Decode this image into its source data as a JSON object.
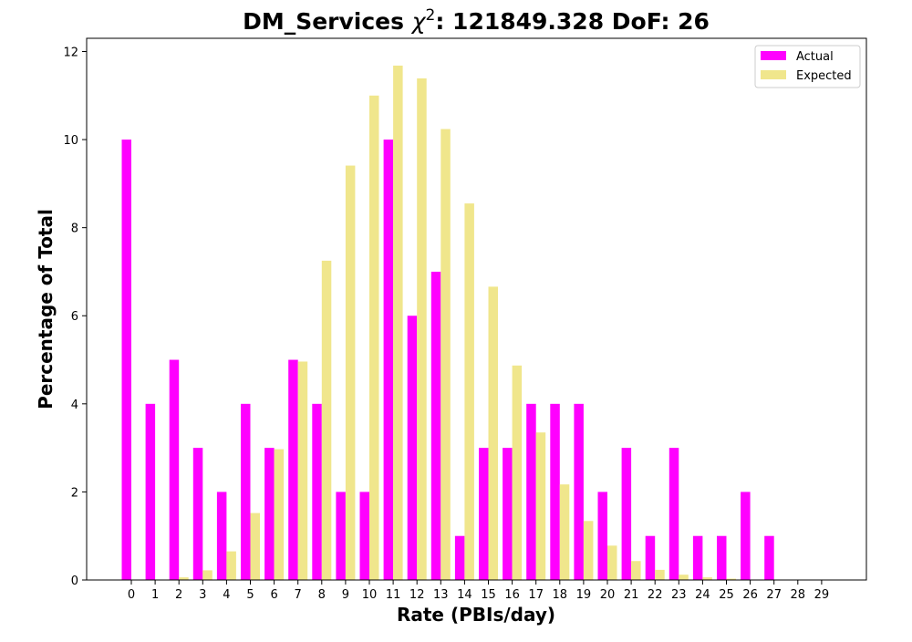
{
  "chart_data": {
    "type": "bar",
    "title": "DM_Services χ²: 121849.328 DoF: 26",
    "title_parts": {
      "prefix": "DM_Services ",
      "chi": "χ",
      "sup": "2",
      "suffix": ": 121849.328 DoF: 26"
    },
    "xlabel": "Rate (PBIs/day)",
    "ylabel": "Percentage of Total",
    "ylim": [
      0,
      12.3
    ],
    "yticks": [
      0,
      2,
      4,
      6,
      8,
      10,
      12
    ],
    "categories": [
      "0",
      "1",
      "2",
      "3",
      "4",
      "5",
      "6",
      "7",
      "8",
      "9",
      "10",
      "11",
      "12",
      "13",
      "14",
      "15",
      "16",
      "17",
      "18",
      "19",
      "20",
      "21",
      "22",
      "23",
      "24",
      "25",
      "26",
      "27",
      "28",
      "29"
    ],
    "legend_position": "top-right",
    "grid": false,
    "series": [
      {
        "name": "Actual",
        "color": "#ff00ff",
        "values": [
          10,
          4,
          5,
          3,
          2,
          4,
          3,
          5,
          4,
          2,
          2,
          10,
          6,
          7,
          1,
          3,
          3,
          4,
          4,
          4,
          2,
          3,
          1,
          3,
          1,
          1,
          2,
          1,
          0,
          0
        ]
      },
      {
        "name": "Expected",
        "color": "#f0e68c",
        "values": [
          0.0,
          0.01,
          0.06,
          0.22,
          0.65,
          1.52,
          2.97,
          4.96,
          7.25,
          9.41,
          11.0,
          11.68,
          11.39,
          10.24,
          8.55,
          6.66,
          4.87,
          3.35,
          2.17,
          1.34,
          0.78,
          0.43,
          0.23,
          0.12,
          0.06,
          0.03,
          0.01,
          0.01,
          0.0,
          0.0
        ]
      }
    ]
  }
}
